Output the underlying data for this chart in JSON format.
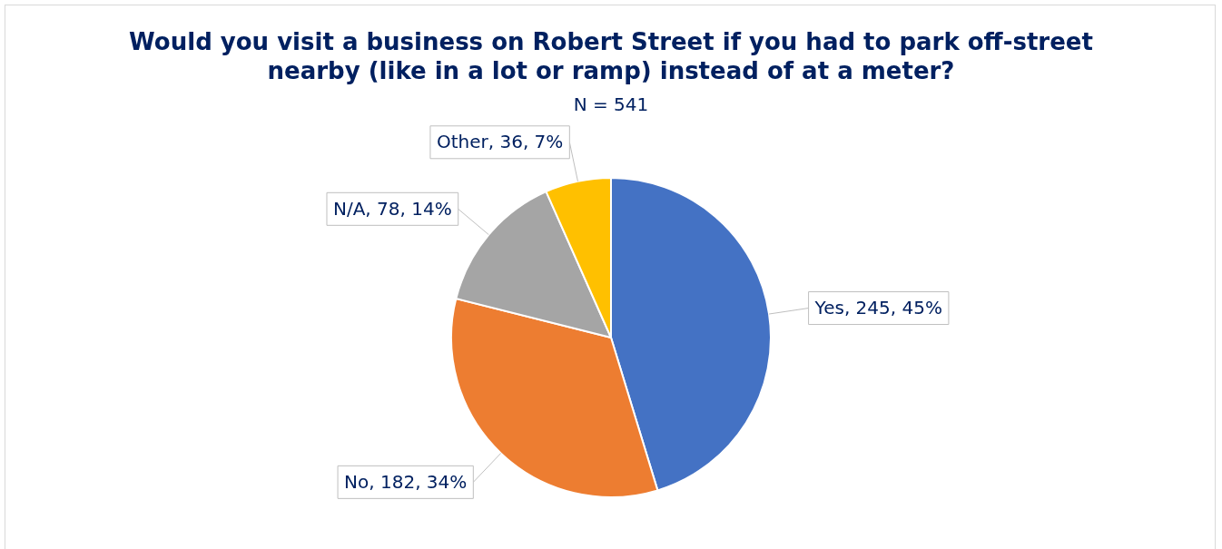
{
  "chart_data": {
    "type": "pie",
    "title": "Would you visit a business on Robert Street if you had to park off-street nearby (like in a lot or ramp) instead of at a meter?",
    "subtitle": "N = 541",
    "categories": [
      "Yes",
      "No",
      "N/A",
      "Other"
    ],
    "values": [
      245,
      182,
      78,
      36
    ],
    "colors": [
      "#4472c4",
      "#ed7d31",
      "#a5a5a5",
      "#ffc000"
    ],
    "value_labels": [
      "245, 45%",
      "182, 34%",
      "78, 14%",
      "36, 7%"
    ],
    "legend": false
  }
}
